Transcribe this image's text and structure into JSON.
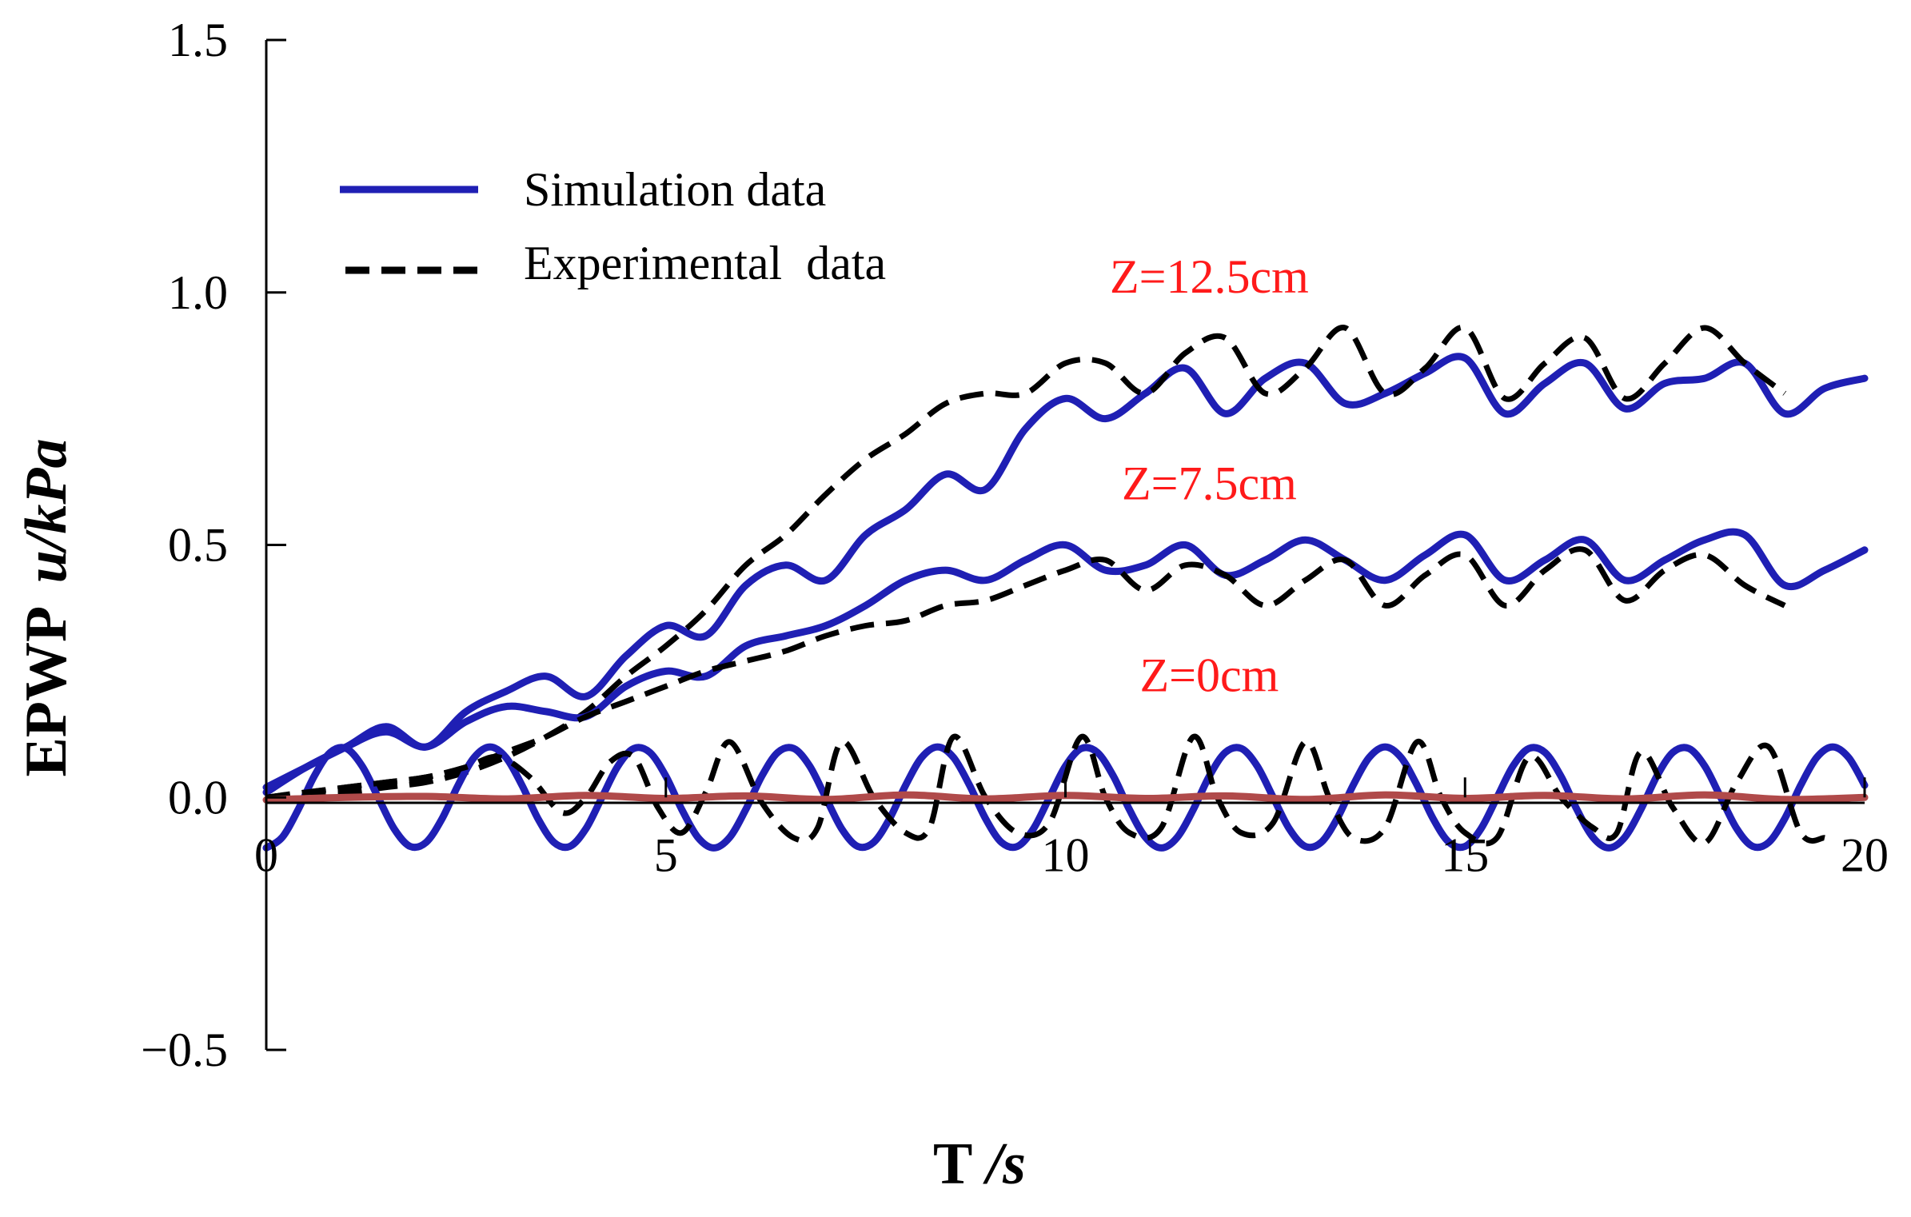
{
  "chart_data": {
    "type": "line",
    "title": "",
    "xlabel_main": "T",
    "xlabel_unit": "/s",
    "ylabel_main": "EPWP",
    "ylabel_unit": "u/kPa",
    "xlim": [
      0,
      20
    ],
    "ylim": [
      -0.5,
      1.5
    ],
    "x_ticks": [
      {
        "value": 0,
        "label": "0"
      },
      {
        "value": 5,
        "label": "5"
      },
      {
        "value": 10,
        "label": "10"
      },
      {
        "value": 15,
        "label": "15"
      },
      {
        "value": 20,
        "label": "20"
      }
    ],
    "y_ticks": [
      {
        "value": 1.5,
        "label": "1.5"
      },
      {
        "value": 1.0,
        "label": "1.0"
      },
      {
        "value": 0.5,
        "label": "0.5"
      },
      {
        "value": 0.0,
        "label": "0.0"
      },
      {
        "value": -0.5,
        "label": "−0.5"
      }
    ],
    "grid": false,
    "legend_position": "top-left",
    "legend": [
      {
        "label": "Simulation data",
        "color": "#1f1fb4",
        "style": "solid"
      },
      {
        "label": "Experimental  data",
        "color": "#000000",
        "style": "dashed"
      }
    ],
    "annotations": [
      {
        "text": "Z=12.5cm",
        "x": 11.8,
        "y": 1.0,
        "color": "#ff1a1a"
      },
      {
        "text": "Z=7.5cm",
        "x": 11.8,
        "y": 0.59,
        "color": "#ff1a1a"
      },
      {
        "text": "Z=0cm",
        "x": 11.8,
        "y": 0.21,
        "color": "#ff1a1a"
      }
    ],
    "series": [
      {
        "name": "Simulation Z=12.5cm",
        "color": "#1f1fb4",
        "style": "solid",
        "x": [
          0,
          0.5,
          1,
          1.5,
          2,
          2.5,
          3,
          3.5,
          4,
          4.5,
          5,
          5.5,
          6,
          6.5,
          7,
          7.5,
          8,
          8.5,
          9,
          9.5,
          10,
          10.5,
          11,
          11.5,
          12,
          12.5,
          13,
          13.5,
          14,
          14.5,
          15,
          15.5,
          16,
          16.5,
          17,
          17.5,
          18,
          18.5,
          19,
          19.5,
          20
        ],
        "y": [
          0.01,
          0.06,
          0.1,
          0.14,
          0.1,
          0.17,
          0.21,
          0.24,
          0.2,
          0.28,
          0.34,
          0.32,
          0.42,
          0.46,
          0.43,
          0.52,
          0.57,
          0.64,
          0.61,
          0.73,
          0.79,
          0.75,
          0.8,
          0.85,
          0.76,
          0.83,
          0.86,
          0.78,
          0.8,
          0.84,
          0.87,
          0.76,
          0.82,
          0.86,
          0.77,
          0.82,
          0.83,
          0.86,
          0.76,
          0.81,
          0.83
        ]
      },
      {
        "name": "Experimental Z=12.5cm",
        "color": "#000000",
        "style": "dashed",
        "x": [
          0,
          0.5,
          1,
          1.5,
          2,
          2.5,
          3,
          3.5,
          4,
          4.5,
          5,
          5.5,
          6,
          6.5,
          7,
          7.5,
          8,
          8.5,
          9,
          9.5,
          10,
          10.5,
          11,
          11.5,
          12,
          12.5,
          13,
          13.5,
          14,
          14.5,
          15,
          15.5,
          16,
          16.5,
          17,
          17.5,
          18,
          18.5,
          19
        ],
        "y": [
          0.0,
          0.01,
          0.01,
          0.02,
          0.03,
          0.05,
          0.08,
          0.12,
          0.17,
          0.24,
          0.3,
          0.37,
          0.46,
          0.52,
          0.6,
          0.67,
          0.72,
          0.78,
          0.8,
          0.8,
          0.86,
          0.86,
          0.8,
          0.88,
          0.91,
          0.8,
          0.85,
          0.93,
          0.8,
          0.85,
          0.93,
          0.79,
          0.86,
          0.91,
          0.79,
          0.86,
          0.93,
          0.86,
          0.8
        ]
      },
      {
        "name": "Simulation Z=7.5cm",
        "color": "#1f1fb4",
        "style": "solid",
        "x": [
          0,
          0.5,
          1,
          1.5,
          2,
          2.5,
          3,
          3.5,
          4,
          4.5,
          5,
          5.5,
          6,
          6.5,
          7,
          7.5,
          8,
          8.5,
          9,
          9.5,
          10,
          10.5,
          11,
          11.5,
          12,
          12.5,
          13,
          13.5,
          14,
          14.5,
          15,
          15.5,
          16,
          16.5,
          17,
          17.5,
          18,
          18.5,
          19,
          19.5,
          20
        ],
        "y": [
          0.02,
          0.06,
          0.1,
          0.13,
          0.1,
          0.15,
          0.18,
          0.17,
          0.16,
          0.22,
          0.25,
          0.24,
          0.3,
          0.32,
          0.34,
          0.38,
          0.43,
          0.45,
          0.43,
          0.47,
          0.5,
          0.45,
          0.46,
          0.5,
          0.44,
          0.47,
          0.51,
          0.47,
          0.43,
          0.48,
          0.52,
          0.43,
          0.47,
          0.51,
          0.43,
          0.47,
          0.51,
          0.52,
          0.42,
          0.45,
          0.49
        ]
      },
      {
        "name": "Experimental Z=7.5cm",
        "color": "#000000",
        "style": "dashed",
        "x": [
          0,
          0.5,
          1,
          1.5,
          2,
          2.5,
          3,
          3.5,
          4,
          4.5,
          5,
          5.5,
          6,
          6.5,
          7,
          7.5,
          8,
          8.5,
          9,
          9.5,
          10,
          10.5,
          11,
          11.5,
          12,
          12.5,
          13,
          13.5,
          14,
          14.5,
          15,
          15.5,
          16,
          16.5,
          17,
          17.5,
          18,
          18.5,
          19
        ],
        "y": [
          0.0,
          0.01,
          0.02,
          0.03,
          0.04,
          0.06,
          0.09,
          0.12,
          0.16,
          0.19,
          0.22,
          0.25,
          0.27,
          0.29,
          0.32,
          0.34,
          0.35,
          0.38,
          0.39,
          0.42,
          0.45,
          0.47,
          0.41,
          0.46,
          0.44,
          0.38,
          0.43,
          0.47,
          0.38,
          0.44,
          0.48,
          0.38,
          0.45,
          0.49,
          0.39,
          0.45,
          0.48,
          0.42,
          0.38
        ]
      },
      {
        "name": "Simulation Z=0cm",
        "color": "#1f1fb4",
        "style": "solid",
        "x": [
          0,
          0.2,
          0.4,
          0.6,
          0.8,
          1.0,
          1.2,
          1.4,
          1.6,
          1.8,
          2.0,
          2.2,
          2.4,
          2.6,
          2.8,
          3.0,
          3.2,
          3.4,
          3.6,
          3.8,
          4.0,
          4.2,
          4.4,
          4.6,
          4.8,
          5.0,
          5.2,
          5.4,
          5.6,
          5.8,
          6.0,
          6.2,
          6.4,
          6.6,
          6.8,
          7.0,
          7.2,
          7.4,
          7.6,
          7.8,
          8.0,
          8.2,
          8.4,
          8.6,
          8.8,
          9.0,
          9.2,
          9.4,
          9.6,
          9.8,
          10.0,
          10.2,
          10.4,
          10.6,
          10.8,
          11.0,
          11.2,
          11.4,
          11.6,
          11.8,
          12.0,
          12.2,
          12.4,
          12.6,
          12.8,
          13.0,
          13.2,
          13.4,
          13.6,
          13.8,
          14.0,
          14.2,
          14.4,
          14.6,
          14.8,
          15.0,
          15.2,
          15.4,
          15.6,
          15.8,
          16.0,
          16.2,
          16.4,
          16.6,
          16.8,
          17.0,
          17.2,
          17.4,
          17.6,
          17.8,
          18.0,
          18.2,
          18.4,
          18.6,
          18.8,
          19.0,
          19.2,
          19.4,
          19.6,
          19.8,
          20.0
        ],
        "y": [
          -0.1,
          -0.079,
          -0.024,
          0.042,
          0.089,
          0.097,
          0.062,
          0.0,
          -0.062,
          -0.097,
          -0.089,
          -0.042,
          0.024,
          0.079,
          0.1,
          0.079,
          0.024,
          -0.042,
          -0.089,
          -0.097,
          -0.062,
          0.0,
          0.062,
          0.097,
          0.089,
          0.042,
          -0.024,
          -0.079,
          -0.1,
          -0.079,
          -0.024,
          0.042,
          0.089,
          0.097,
          0.062,
          0.0,
          -0.062,
          -0.097,
          -0.089,
          -0.042,
          0.024,
          0.079,
          0.1,
          0.079,
          0.024,
          -0.042,
          -0.089,
          -0.097,
          -0.062,
          0.0,
          0.062,
          0.097,
          0.089,
          0.042,
          -0.024,
          -0.079,
          -0.1,
          -0.079,
          -0.024,
          0.042,
          0.089,
          0.097,
          0.062,
          0.0,
          -0.062,
          -0.097,
          -0.089,
          -0.042,
          0.024,
          0.079,
          0.1,
          0.079,
          0.024,
          -0.042,
          -0.089,
          -0.097,
          -0.062,
          0.0,
          0.062,
          0.097,
          0.089,
          0.042,
          -0.024,
          -0.079,
          -0.1,
          -0.079,
          -0.024,
          0.042,
          0.089,
          0.097,
          0.062,
          0.0,
          -0.062,
          -0.097,
          -0.089,
          -0.042,
          0.024,
          0.079,
          0.1,
          0.079,
          0.024
        ]
      },
      {
        "name": "Experimental Z=0cm",
        "color": "#000000",
        "style": "dashed",
        "x": [
          0,
          0.5,
          1,
          1.5,
          2,
          2.5,
          2.9,
          3.3,
          3.7,
          4.0,
          4.3,
          4.6,
          4.9,
          5.2,
          5.5,
          5.8,
          6.2,
          6.6,
          6.9,
          7.2,
          7.6,
          8.0,
          8.3,
          8.6,
          9.0,
          9.4,
          9.8,
          10.2,
          10.5,
          10.8,
          11.2,
          11.6,
          11.9,
          12.2,
          12.6,
          13.0,
          13.3,
          13.6,
          14.0,
          14.4,
          14.7,
          15.0,
          15.4,
          15.8,
          16.2,
          16.6,
          16.9,
          17.2,
          17.6,
          18.0,
          18.4,
          18.8,
          19.2,
          19.5
        ],
        "y": [
          0.0,
          0.01,
          0.02,
          0.03,
          0.04,
          0.06,
          0.08,
          0.04,
          -0.03,
          0.0,
          0.07,
          0.08,
          -0.02,
          -0.07,
          0.01,
          0.11,
          -0.01,
          -0.08,
          -0.06,
          0.11,
          0.0,
          -0.07,
          -0.06,
          0.12,
          0.0,
          -0.07,
          -0.05,
          0.12,
          0.0,
          -0.07,
          -0.06,
          0.12,
          0.0,
          -0.07,
          -0.05,
          0.11,
          0.0,
          -0.08,
          -0.06,
          0.11,
          0.0,
          -0.07,
          -0.08,
          0.08,
          0.0,
          -0.06,
          -0.07,
          0.09,
          -0.02,
          -0.09,
          0.03,
          0.1,
          -0.07,
          -0.08
        ]
      },
      {
        "name": "Baseline Z=0cm",
        "color": "#b04a4a",
        "style": "solid",
        "x": [
          0,
          1,
          2,
          3,
          4,
          5,
          6,
          7,
          8,
          9,
          10,
          11,
          12,
          13,
          14,
          15,
          16,
          17,
          18,
          19,
          20
        ],
        "y": [
          -0.005,
          0.0,
          0.002,
          -0.003,
          0.004,
          -0.002,
          0.003,
          -0.004,
          0.005,
          -0.003,
          0.004,
          -0.002,
          0.003,
          -0.004,
          0.005,
          -0.002,
          0.004,
          -0.003,
          0.005,
          -0.004,
          0.0
        ]
      }
    ]
  }
}
